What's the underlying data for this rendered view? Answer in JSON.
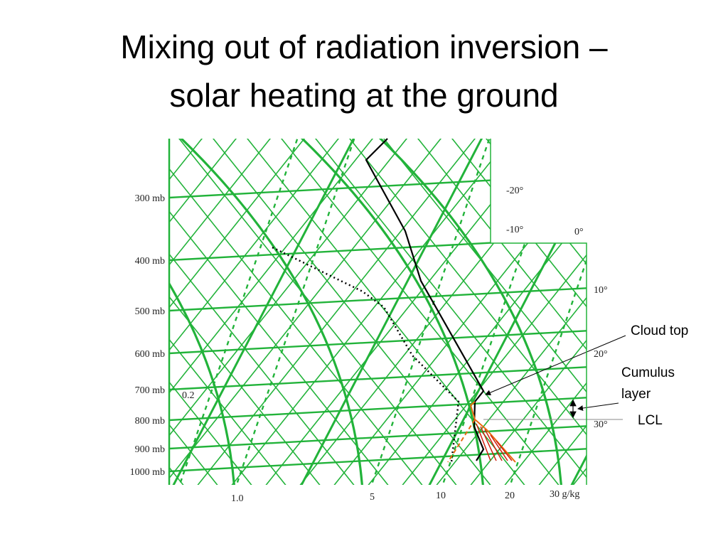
{
  "title": [
    "Mixing out of radiation inversion –",
    "solar heating at the ground"
  ],
  "pressure_labels": [
    "300 mb",
    "400 mb",
    "500 mb",
    "600 mb",
    "700 mb",
    "800 mb",
    "900 mb",
    "1000 mb"
  ],
  "temperature_labels": [
    "-20°",
    "-10°",
    "0°",
    "10°",
    "20°",
    "30°"
  ],
  "mixing_ratio_labels": [
    "0.2",
    "1.0",
    "5",
    "10",
    "20",
    "30 g/kg"
  ],
  "annotations": {
    "cloud_top": "Cloud top",
    "cumulus_layer": [
      "Cumulus",
      "layer"
    ],
    "lcl": "LCL"
  }
}
